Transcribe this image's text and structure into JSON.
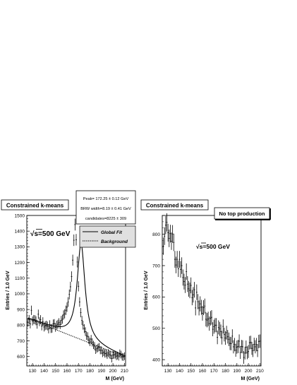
{
  "chart_data": [
    {
      "type": "line",
      "title": "Constrained k-means",
      "xlabel": "M (GeV)",
      "ylabel": "Entries / 1.0 GeV",
      "xlim": [
        125,
        211
      ],
      "ylim": [
        540,
        1500
      ],
      "x_ticks": [
        130,
        140,
        150,
        160,
        170,
        180,
        190,
        200,
        210
      ],
      "y_ticks": [
        600,
        700,
        800,
        900,
        1000,
        1100,
        1200,
        1300,
        1400,
        1500
      ],
      "annotation_prefix": "√",
      "annotation": "s=500 GeV",
      "stats_box": [
        "Peak= 172.25 ± 0.12 GeV",
        "BRW width=8.19 ± 0.41 GeV",
        "candidates=8225 ± 309"
      ],
      "legend": {
        "placement": "top-right",
        "entries": [
          "Global Fit",
          "Background"
        ]
      },
      "fit_model": {
        "bg_at_125": 845,
        "bg_slope_per_gev": -2.9,
        "peak": 172.25,
        "width": 8.19,
        "amplitude": 612
      },
      "series": [
        {
          "name": "Global Fit",
          "style": "solid"
        },
        {
          "name": "Background",
          "style": "dotted"
        },
        {
          "style": "data-points-with-errors",
          "x": [
            126,
            127,
            128,
            129,
            130,
            131,
            132,
            133,
            134,
            135,
            136,
            137,
            138,
            139,
            140,
            141,
            142,
            143,
            144,
            145,
            146,
            147,
            148,
            149,
            150,
            151,
            152,
            153,
            154,
            155,
            156,
            157,
            158,
            159,
            160,
            161,
            162,
            163,
            164,
            165,
            166,
            167,
            168,
            169,
            170,
            171,
            172,
            173,
            174,
            175,
            176,
            177,
            178,
            179,
            180,
            181,
            182,
            183,
            184,
            185,
            186,
            187,
            188,
            189,
            190,
            191,
            192,
            193,
            194,
            195,
            196,
            197,
            198,
            199,
            200,
            201,
            202,
            203,
            204,
            205,
            206,
            207,
            208,
            209,
            210
          ],
          "values": [
            818,
            836,
            808,
            895,
            827,
            836,
            835,
            828,
            806,
            870,
            822,
            835,
            795,
            822,
            788,
            796,
            800,
            795,
            776,
            803,
            778,
            780,
            808,
            810,
            786,
            800,
            806,
            816,
            803,
            830,
            838,
            865,
            873,
            895,
            915,
            948,
            996,
            1045,
            1110,
            1215,
            1342,
            1442,
            1345,
            1203,
            1048,
            948,
            880,
            830,
            800,
            778,
            759,
            733,
            728,
            705,
            693,
            711,
            690,
            674,
            666,
            642,
            650,
            656,
            661,
            640,
            640,
            621,
            628,
            618,
            620,
            609,
            622,
            612,
            608,
            587,
            610,
            611,
            612,
            602,
            606,
            599,
            620,
            612,
            599,
            597,
            602
          ]
        }
      ]
    },
    {
      "type": "line",
      "title": "Constrained k-means",
      "subtitle": "No top production",
      "xlabel": "M (GeV)",
      "ylabel": "Entries / 1.0 GeV",
      "xlim": [
        125,
        211
      ],
      "ylim": [
        380,
        860
      ],
      "x_ticks": [
        130,
        140,
        150,
        160,
        170,
        180,
        190,
        200,
        210
      ],
      "y_ticks": [
        400,
        500,
        600,
        700,
        800
      ],
      "annotation_prefix": "√",
      "annotation": "s=500 GeV",
      "series": [
        {
          "style": "data-points-with-errors",
          "x": [
            126,
            127,
            128,
            129,
            130,
            131,
            132,
            133,
            134,
            135,
            136,
            137,
            138,
            139,
            140,
            141,
            142,
            143,
            144,
            145,
            146,
            147,
            148,
            149,
            150,
            151,
            152,
            153,
            154,
            155,
            156,
            157,
            158,
            159,
            160,
            161,
            162,
            163,
            164,
            165,
            166,
            167,
            168,
            169,
            170,
            171,
            172,
            173,
            174,
            175,
            176,
            177,
            178,
            179,
            180,
            181,
            182,
            183,
            184,
            185,
            186,
            187,
            188,
            189,
            190,
            191,
            192,
            193,
            194,
            195,
            196,
            197,
            198,
            199,
            200,
            201,
            202,
            203,
            204,
            205,
            206,
            207,
            208,
            209,
            210
          ],
          "values": [
            762,
            794,
            829,
            838,
            805,
            787,
            802,
            778,
            801,
            774,
            720,
            702,
            720,
            690,
            720,
            688,
            700,
            662,
            649,
            638,
            681,
            641,
            626,
            621,
            637,
            598,
            607,
            623,
            565,
            615,
            585,
            565,
            578,
            567,
            548,
            566,
            571,
            529,
            526,
            530,
            515,
            532,
            535,
            497,
            505,
            510,
            510,
            471,
            503,
            498,
            490,
            470,
            506,
            480,
            469,
            486,
            473,
            465,
            452,
            451,
            475,
            441,
            448,
            430,
            440,
            442,
            459,
            423,
            442,
            441,
            407,
            421,
            440,
            422,
            426,
            454,
            455,
            436,
            429,
            449,
            441,
            448,
            429,
            458,
            459
          ]
        }
      ]
    }
  ]
}
